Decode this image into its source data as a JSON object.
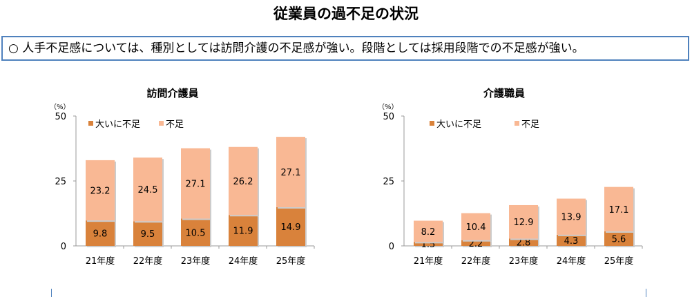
{
  "title": "従業員の過不足の状況",
  "summary": "○  人手不足感については、種別としては訪問介護の不足感が強い。段階としては採用段階での不足感が強い。",
  "colors": {
    "severe": "#D9823B",
    "shortage": "#F9B894"
  },
  "chart_data": [
    {
      "type": "bar",
      "stacked": true,
      "title": "訪問介護員",
      "unit": "（%）",
      "categories": [
        "21年度",
        "22年度",
        "23年度",
        "24年度",
        "25年度"
      ],
      "series": [
        {
          "name": "大いに不足",
          "values": [
            9.8,
            9.5,
            10.5,
            11.9,
            14.9
          ]
        },
        {
          "name": "不足",
          "values": [
            23.2,
            24.5,
            27.1,
            26.2,
            27.1
          ]
        }
      ],
      "yticks": [
        "0",
        "25",
        "50"
      ],
      "ylim": [
        0,
        50
      ],
      "legend": "top-left"
    },
    {
      "type": "bar",
      "stacked": true,
      "title": "介護職員",
      "unit": "（%）",
      "categories": [
        "21年度",
        "22年度",
        "23年度",
        "24年度",
        "25年度"
      ],
      "series": [
        {
          "name": "大いに不足",
          "values": [
            1.5,
            2.2,
            2.8,
            4.3,
            5.6
          ]
        },
        {
          "name": "不足",
          "values": [
            8.2,
            10.4,
            12.9,
            13.9,
            17.1
          ]
        }
      ],
      "yticks": [
        "0",
        "25",
        "50"
      ],
      "ylim": [
        0,
        50
      ],
      "legend": "top-left"
    }
  ]
}
